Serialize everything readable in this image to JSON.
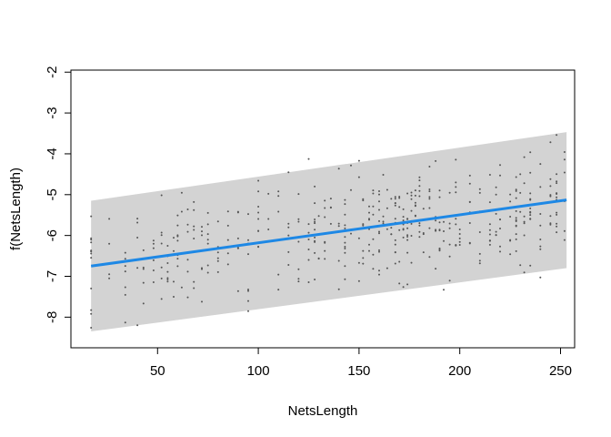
{
  "chart_data": {
    "type": "scatter",
    "xlabel": "NetsLength",
    "ylabel": "f(NetsLength)",
    "xlim": [
      7,
      257
    ],
    "ylim": [
      -8.75,
      -1.95
    ],
    "xticks": [
      50,
      100,
      150,
      200,
      250
    ],
    "yticks": [
      -8,
      -7,
      -6,
      -5,
      -4,
      -3,
      -2
    ],
    "grid": false,
    "legend": "none",
    "colors": {
      "band": "#d3d3d3",
      "fit_line": "#1e88e5",
      "points": "#555555",
      "axis": "#000000"
    },
    "fit": {
      "x": [
        17,
        253
      ],
      "y": [
        -6.75,
        -5.13
      ]
    },
    "band": {
      "x": [
        17,
        253
      ],
      "lower": [
        -8.35,
        -6.8
      ],
      "upper": [
        -5.15,
        -3.47
      ]
    },
    "points_summary": {
      "count": 480,
      "x_range": [
        17,
        253
      ],
      "residual_spread": 0.9
    }
  }
}
